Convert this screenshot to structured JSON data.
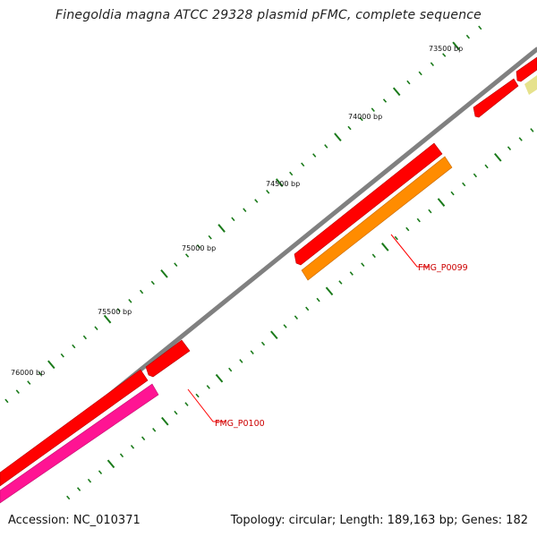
{
  "title": "Finegoldia magna ATCC 29328 plasmid pFMC, complete sequence",
  "footer": {
    "accession": "Accession: NC_010371",
    "stats": "Topology: circular; Length: 189,163 bp; Genes: 182"
  },
  "ruler": {
    "labels": [
      "73500 bp",
      "74000 bp",
      "74500 bp",
      "75000 bp",
      "75500 bp",
      "76000 bp"
    ]
  },
  "genes": [
    {
      "label": "FMG_P0099"
    },
    {
      "label": "FMG_P0100"
    }
  ],
  "colors": {
    "backbone": "#808080",
    "gene_forward": "#ff0000",
    "gene_orange": "#ff8c00",
    "gene_pink": "#ff1493",
    "gene_pale": "#e6e28c",
    "tick": "#1a7a1a",
    "label_line": "#ff0000",
    "label_text": "#cc0000"
  },
  "icons": {
    "direction": "arrow-glyph"
  }
}
